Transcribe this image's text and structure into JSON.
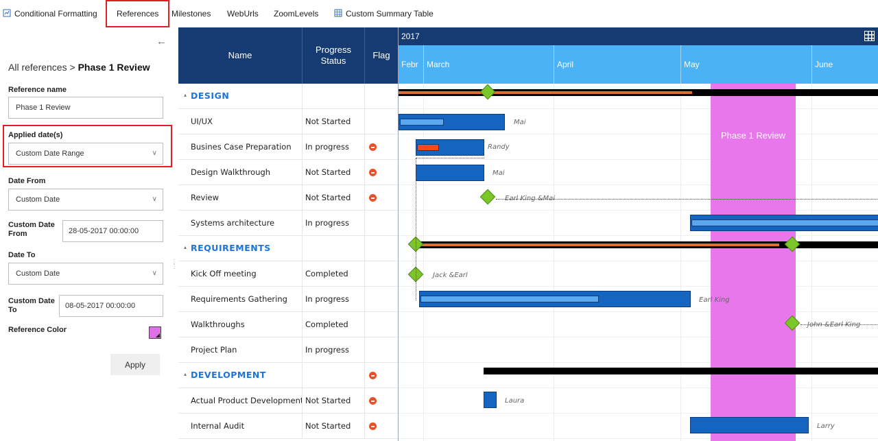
{
  "tabs": [
    {
      "label": "Conditional Formatting"
    },
    {
      "label": "References"
    },
    {
      "label": "Milestones"
    },
    {
      "label": "WebUrls"
    },
    {
      "label": "ZoomLevels"
    },
    {
      "label": "Custom Summary Table"
    }
  ],
  "panel": {
    "breadcrumb_root": "All references > ",
    "breadcrumb_current": "Phase 1 Review",
    "reference_name_label": "Reference name",
    "reference_name_value": "Phase 1 Review",
    "applied_dates_label": "Applied date(s)",
    "applied_dates_value": "Custom Date Range",
    "date_from_label": "Date From",
    "date_from_value": "Custom Date",
    "custom_from_label": "Custom Date From",
    "custom_from_value": "28-05-2017 00:00:00",
    "date_to_label": "Date To",
    "date_to_value": "Custom Date",
    "custom_to_label": "Custom Date To",
    "custom_to_value": "08-05-2017 00:00:00",
    "reference_color_label": "Reference Color",
    "reference_color": "#e070e8",
    "apply_label": "Apply"
  },
  "grid": {
    "headers": {
      "name": "Name",
      "progress": "Progress Status",
      "flag": "Flag"
    },
    "rows": [
      {
        "type": "group",
        "name": "DESIGN",
        "status": "",
        "flag": false
      },
      {
        "type": "task",
        "name": "UI/UX",
        "status": "Not Started",
        "flag": false
      },
      {
        "type": "task",
        "name": "Busines Case Preparation",
        "status": "In progress",
        "flag": true
      },
      {
        "type": "task",
        "name": "Design Walkthrough",
        "status": "Not Started",
        "flag": true
      },
      {
        "type": "task",
        "name": "Review",
        "status": "Not Started",
        "flag": true
      },
      {
        "type": "task",
        "name": "Systems architecture",
        "status": "In progress",
        "flag": false
      },
      {
        "type": "group",
        "name": "REQUIREMENTS",
        "status": "",
        "flag": false
      },
      {
        "type": "task",
        "name": "Kick Off meeting",
        "status": "Completed",
        "flag": false
      },
      {
        "type": "task",
        "name": "Requirements Gathering",
        "status": "In progress",
        "flag": false
      },
      {
        "type": "task",
        "name": "Walkthroughs",
        "status": "Completed",
        "flag": false
      },
      {
        "type": "task",
        "name": "Project Plan",
        "status": "In progress",
        "flag": false
      },
      {
        "type": "group",
        "name": "DEVELOPMENT",
        "status": "",
        "flag": true
      },
      {
        "type": "task",
        "name": "Actual Product Development",
        "status": "Not Started",
        "flag": true
      },
      {
        "type": "task",
        "name": "Internal Audit",
        "status": "Not Started",
        "flag": true
      }
    ]
  },
  "chart": {
    "year": "2017",
    "months": [
      "Febr",
      "March",
      "April",
      "May",
      "June"
    ],
    "reference_label": "Phase 1 Review",
    "reference_color": "#e877ec",
    "resources": {
      "uiux": "Mai",
      "business": "Randy",
      "walkthrough": "Mai",
      "review": "Earl King &Mai",
      "kickoff": "Jack &Earl",
      "requirements": "Earl King",
      "walkthroughs": "John &Earl King",
      "product": "Laura",
      "audit": "Larry"
    },
    "colors": {
      "header": "#163b72",
      "month_bar": "#4ab2f5",
      "task_bar": "#1565c0",
      "milestone": "#7bc628",
      "flag": "#e8502a",
      "highlight": "#e02020"
    }
  }
}
